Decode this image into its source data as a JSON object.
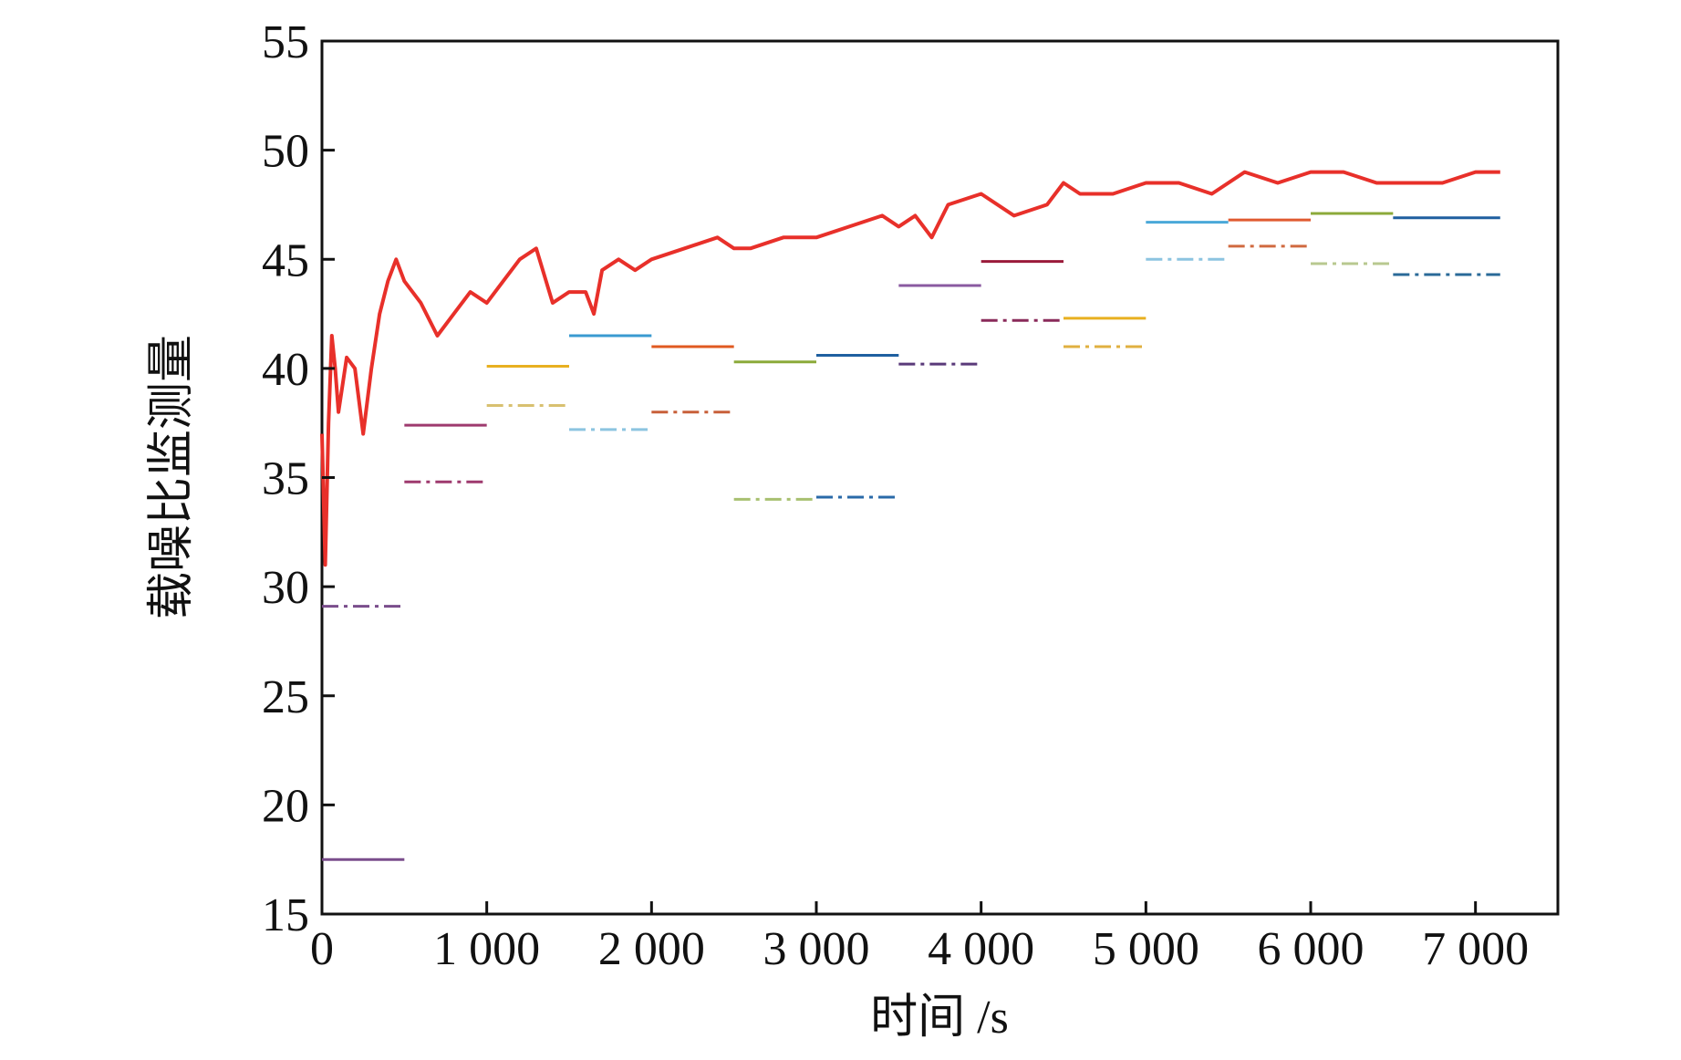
{
  "chart_data": {
    "type": "line",
    "title": "",
    "xlabel": "时间 /s",
    "ylabel": "载噪比监测量",
    "xlim": [
      0,
      7500
    ],
    "ylim": [
      15,
      55
    ],
    "x_ticks": [
      0,
      1000,
      2000,
      3000,
      4000,
      5000,
      6000,
      7000
    ],
    "x_tick_labels": [
      "0",
      "1 000",
      "2 000",
      "3 000",
      "4 000",
      "5 000",
      "6 000",
      "7 000"
    ],
    "y_ticks": [
      15,
      20,
      25,
      30,
      35,
      40,
      45,
      50,
      55
    ],
    "y_tick_labels": [
      "15",
      "20",
      "25",
      "30",
      "35",
      "40",
      "45",
      "50",
      "55"
    ],
    "main_series": {
      "name": "载噪比监测量",
      "color": "#e8302a",
      "x": [
        0,
        20,
        40,
        60,
        80,
        100,
        150,
        200,
        250,
        300,
        350,
        400,
        450,
        500,
        600,
        700,
        800,
        900,
        1000,
        1100,
        1200,
        1300,
        1400,
        1500,
        1600,
        1650,
        1700,
        1800,
        1900,
        2000,
        2200,
        2400,
        2500,
        2600,
        2800,
        3000,
        3200,
        3400,
        3500,
        3600,
        3700,
        3800,
        4000,
        4200,
        4400,
        4500,
        4600,
        4800,
        5000,
        5200,
        5400,
        5600,
        5800,
        6000,
        6200,
        6400,
        6600,
        6800,
        7000,
        7150
      ],
      "values": [
        37.0,
        31.0,
        37.5,
        41.5,
        40.0,
        38.0,
        40.5,
        40.0,
        37.0,
        40.0,
        42.5,
        44.0,
        45.0,
        44.0,
        43.0,
        41.5,
        42.5,
        43.5,
        43.0,
        44.0,
        45.0,
        45.5,
        43.0,
        43.5,
        43.5,
        42.5,
        44.5,
        45.0,
        44.5,
        45.0,
        45.5,
        46.0,
        45.5,
        45.5,
        46.0,
        46.0,
        46.5,
        47.0,
        46.5,
        47.0,
        46.0,
        47.5,
        48.0,
        47.0,
        47.5,
        48.5,
        48.0,
        48.0,
        48.5,
        48.5,
        48.0,
        49.0,
        48.5,
        49.0,
        49.0,
        48.5,
        48.5,
        48.5,
        49.0,
        49.0
      ]
    },
    "reference_segments": [
      {
        "x0": 0,
        "x1": 500,
        "y": 17.5,
        "style": "solid",
        "color": "#7a4d8c"
      },
      {
        "x0": 0,
        "x1": 500,
        "y": 29.1,
        "style": "dashdot",
        "color": "#7a4d8c"
      },
      {
        "x0": 500,
        "x1": 1000,
        "y": 37.4,
        "style": "solid",
        "color": "#9e3a6e"
      },
      {
        "x0": 500,
        "x1": 1000,
        "y": 34.8,
        "style": "dashdot",
        "color": "#9e3a6e"
      },
      {
        "x0": 1000,
        "x1": 1500,
        "y": 40.1,
        "style": "solid",
        "color": "#e8b020"
      },
      {
        "x0": 1000,
        "x1": 1500,
        "y": 38.3,
        "style": "dashdot",
        "color": "#d8c070"
      },
      {
        "x0": 1500,
        "x1": 2000,
        "y": 41.5,
        "style": "solid",
        "color": "#3a9ad0"
      },
      {
        "x0": 1500,
        "x1": 2000,
        "y": 37.2,
        "style": "dashdot",
        "color": "#8cc4e0"
      },
      {
        "x0": 2000,
        "x1": 2500,
        "y": 41.0,
        "style": "solid",
        "color": "#e05a20"
      },
      {
        "x0": 2000,
        "x1": 2500,
        "y": 38.0,
        "style": "dashdot",
        "color": "#c8603a"
      },
      {
        "x0": 2500,
        "x1": 3000,
        "y": 40.3,
        "style": "solid",
        "color": "#8caa3a"
      },
      {
        "x0": 2500,
        "x1": 3000,
        "y": 34.0,
        "style": "dashdot",
        "color": "#a8c070"
      },
      {
        "x0": 3000,
        "x1": 3500,
        "y": 40.6,
        "style": "solid",
        "color": "#1f5fa0"
      },
      {
        "x0": 3000,
        "x1": 3500,
        "y": 34.1,
        "style": "dashdot",
        "color": "#2a6aa8"
      },
      {
        "x0": 3500,
        "x1": 4000,
        "y": 43.8,
        "style": "solid",
        "color": "#8a5aa0"
      },
      {
        "x0": 3500,
        "x1": 4000,
        "y": 40.2,
        "style": "dashdot",
        "color": "#5a3a7a"
      },
      {
        "x0": 4000,
        "x1": 4500,
        "y": 44.9,
        "style": "solid",
        "color": "#9a1a3a"
      },
      {
        "x0": 4000,
        "x1": 4500,
        "y": 42.2,
        "style": "dashdot",
        "color": "#8a2a5a"
      },
      {
        "x0": 4500,
        "x1": 5000,
        "y": 42.3,
        "style": "solid",
        "color": "#e8b020"
      },
      {
        "x0": 4500,
        "x1": 5000,
        "y": 41.0,
        "style": "dashdot",
        "color": "#e0b040"
      },
      {
        "x0": 5000,
        "x1": 5500,
        "y": 46.7,
        "style": "solid",
        "color": "#4aa8d8"
      },
      {
        "x0": 5000,
        "x1": 5500,
        "y": 45.0,
        "style": "dashdot",
        "color": "#8cc4e0"
      },
      {
        "x0": 5500,
        "x1": 6000,
        "y": 46.8,
        "style": "solid",
        "color": "#e05a30"
      },
      {
        "x0": 5500,
        "x1": 6000,
        "y": 45.6,
        "style": "dashdot",
        "color": "#d06a40"
      },
      {
        "x0": 6000,
        "x1": 6500,
        "y": 47.1,
        "style": "solid",
        "color": "#8caa3a"
      },
      {
        "x0": 6000,
        "x1": 6500,
        "y": 44.8,
        "style": "dashdot",
        "color": "#b8c890"
      },
      {
        "x0": 6500,
        "x1": 7150,
        "y": 46.9,
        "style": "solid",
        "color": "#1f5fa0"
      },
      {
        "x0": 6500,
        "x1": 7150,
        "y": 44.3,
        "style": "dashdot",
        "color": "#2a6a98"
      }
    ]
  }
}
